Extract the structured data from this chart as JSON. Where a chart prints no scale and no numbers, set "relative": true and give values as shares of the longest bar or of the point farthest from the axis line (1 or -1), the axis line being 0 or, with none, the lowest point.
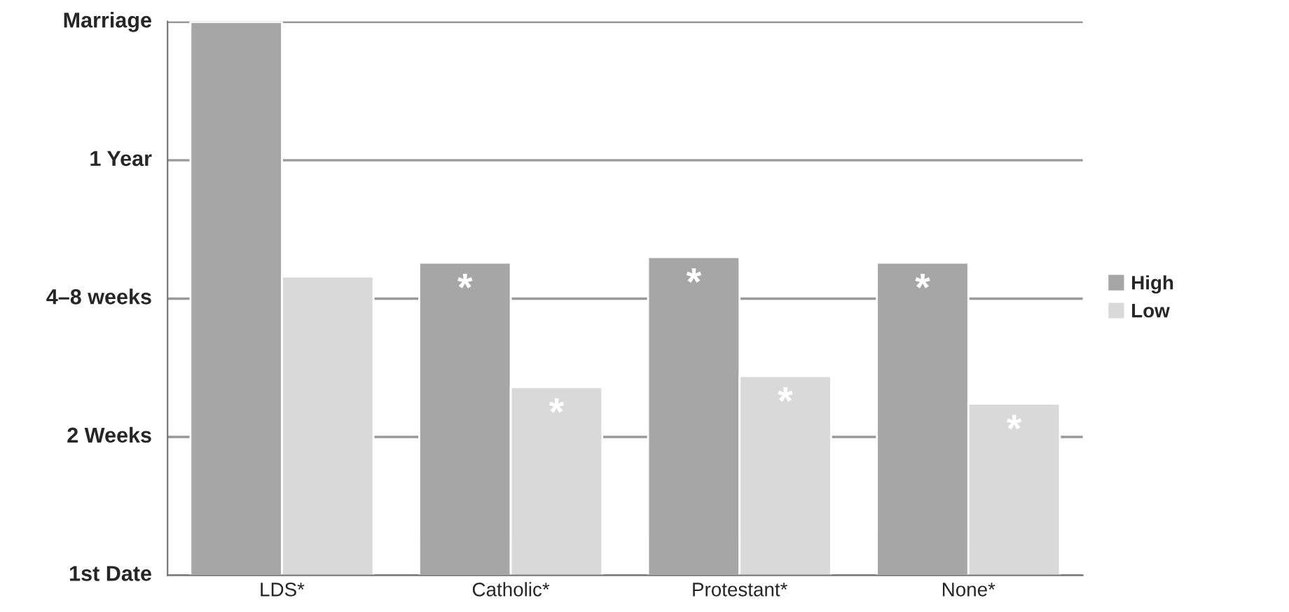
{
  "chart_data": {
    "type": "bar",
    "relative": true,
    "categories": [
      "LDS*",
      "Catholic*",
      "Protestant*",
      "None*"
    ],
    "series": [
      {
        "name": "High",
        "color": "#a6a6a6",
        "values": [
          1,
          0.565,
          0.575,
          0.565
        ]
      },
      {
        "name": "Low",
        "color": "#d9d9d9",
        "values": [
          0.54,
          0.34,
          0.36,
          0.31
        ]
      }
    ],
    "ref_lines": [
      {
        "axis": "y",
        "value": 0,
        "label": "1st Date"
      },
      {
        "axis": "y",
        "value": 0.25,
        "label": "2 Weeks"
      },
      {
        "axis": "y",
        "value": 0.5,
        "label": "4–8 weeks"
      },
      {
        "axis": "y",
        "value": 0.75,
        "label": "1 Year"
      },
      {
        "axis": "y",
        "value": 1,
        "label": "Marriage"
      }
    ],
    "legend": "right",
    "annotations": [
      {
        "text": "*",
        "x": "Catholic*",
        "y": 0.565
      },
      {
        "text": "*",
        "x": "Catholic*",
        "y": 0.34
      },
      {
        "text": "*",
        "x": "Protestant*",
        "y": 0.575
      },
      {
        "text": "*",
        "x": "Protestant*",
        "y": 0.36
      },
      {
        "text": "*",
        "x": "None*",
        "y": 0.565
      },
      {
        "text": "*",
        "x": "None*",
        "y": 0.31
      }
    ]
  }
}
